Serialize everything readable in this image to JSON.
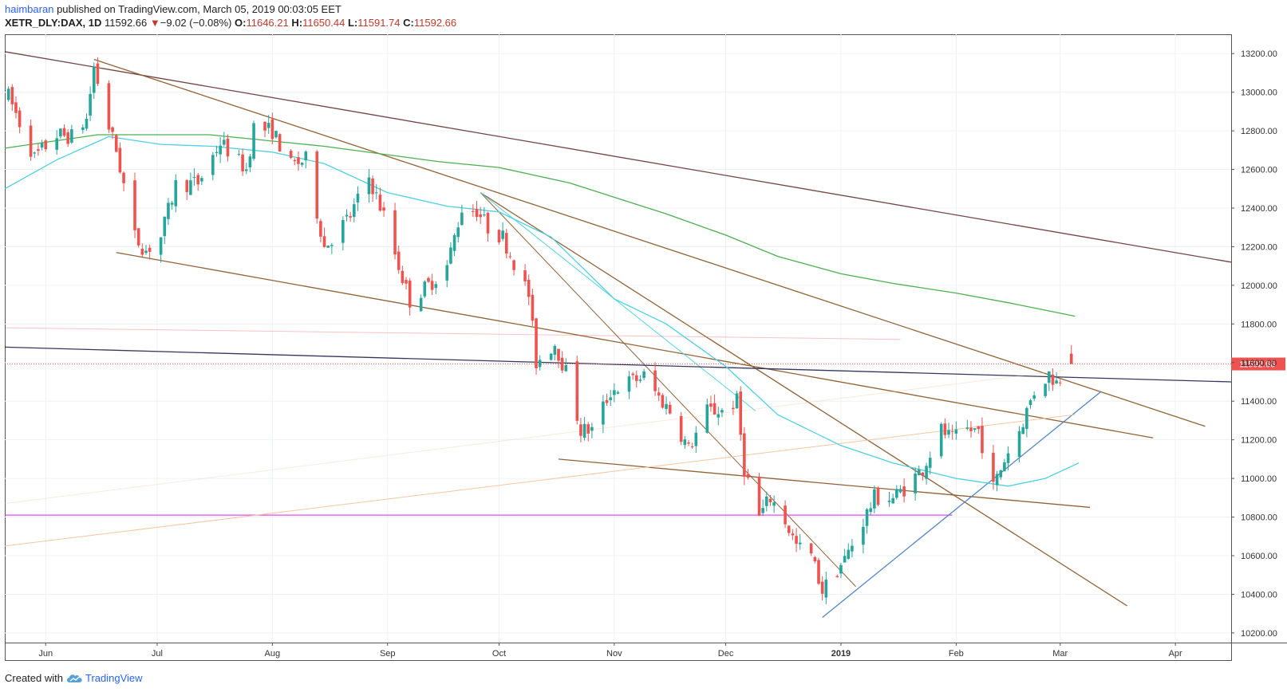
{
  "header": {
    "author": "haimbaran",
    "published_text": "published on TradingView.com, March 05, 2019 00:03:05 EET",
    "symbol": "XETR_DLY:DAX, 1D",
    "last": "11592.66",
    "change": "−9.02 (−0.08%)",
    "o_label": "O:",
    "o_value": "11646.21",
    "h_label": "H:",
    "h_value": "11650.44",
    "l_label": "L:",
    "l_value": "11591.74",
    "c_label": "C:",
    "c_value": "11592.66"
  },
  "footer": {
    "created_with": "Created with",
    "brand": "TradingView",
    "brand_icon": "tradingview-cloud-icon"
  },
  "colors": {
    "up": "#26a69a",
    "down": "#ef5350",
    "price_tag": "#ef5350",
    "ma_long": "#4caf50",
    "ma_short": "#4dd0e1",
    "trend_brown": "#8b5a2b",
    "trend_dark": "#6b3a3a",
    "support_magenta": "#e040fb",
    "horizontal_navy": "#2b2b55",
    "uptrend_blue": "#4a7fc1",
    "faint_orange": "#f4c49a",
    "grid": "#eef1f4"
  },
  "chart_data": {
    "type": "candlestick",
    "ylim": [
      10150,
      13300
    ],
    "y_ticks": [
      "13200.00",
      "13000.00",
      "12800.00",
      "12600.00",
      "12400.00",
      "12200.00",
      "12000.00",
      "11800.00",
      "11600.00",
      "11400.00",
      "11200.00",
      "11000.00",
      "10800.00",
      "10600.00",
      "10400.00",
      "10200.00"
    ],
    "x_ticks": [
      {
        "label": "Jun",
        "date": "2018-06-01"
      },
      {
        "label": "Jul",
        "date": "2018-07-01"
      },
      {
        "label": "Aug",
        "date": "2018-08-01"
      },
      {
        "label": "Sep",
        "date": "2018-09-01"
      },
      {
        "label": "Oct",
        "date": "2018-10-01"
      },
      {
        "label": "Nov",
        "date": "2018-11-01"
      },
      {
        "label": "Dec",
        "date": "2018-12-01"
      },
      {
        "label": "2019",
        "date": "2019-01-01"
      },
      {
        "label": "Feb",
        "date": "2019-02-01"
      },
      {
        "label": "Mar",
        "date": "2019-03-01"
      },
      {
        "label": "Apr",
        "date": "2019-04-01"
      }
    ],
    "x_range": [
      "2018-05-21",
      "2019-04-16"
    ],
    "last_price": "11592.66",
    "last_price_line_value": 11592.66,
    "ohlc_path": [
      [
        "2018-05-22",
        12980
      ],
      [
        "2018-05-29",
        12660
      ],
      [
        "2018-06-04",
        12780
      ],
      [
        "2018-06-08",
        12770
      ],
      [
        "2018-06-12",
        12860
      ],
      [
        "2018-06-14",
        13130
      ],
      [
        "2018-06-18",
        12820
      ],
      [
        "2018-06-20",
        12700
      ],
      [
        "2018-06-25",
        12250
      ],
      [
        "2018-06-28",
        12180
      ],
      [
        "2018-07-02",
        12250
      ],
      [
        "2018-07-06",
        12520
      ],
      [
        "2018-07-12",
        12530
      ],
      [
        "2018-07-18",
        12740
      ],
      [
        "2018-07-25",
        12600
      ],
      [
        "2018-07-27",
        12820
      ],
      [
        "2018-08-01",
        12800
      ],
      [
        "2018-08-06",
        12620
      ],
      [
        "2018-08-10",
        12650
      ],
      [
        "2018-08-15",
        12200
      ],
      [
        "2018-08-22",
        12360
      ],
      [
        "2018-08-27",
        12560
      ],
      [
        "2018-08-31",
        12360
      ],
      [
        "2018-09-04",
        12100
      ],
      [
        "2018-09-07",
        11920
      ],
      [
        "2018-09-12",
        12000
      ],
      [
        "2018-09-17",
        12100
      ],
      [
        "2018-09-21",
        12400
      ],
      [
        "2018-09-25",
        12390
      ],
      [
        "2018-09-28",
        12300
      ],
      [
        "2018-10-02",
        12250
      ],
      [
        "2018-10-05",
        12120
      ],
      [
        "2018-10-09",
        11950
      ],
      [
        "2018-10-11",
        11600
      ],
      [
        "2018-10-16",
        11700
      ],
      [
        "2018-10-19",
        11550
      ],
      [
        "2018-10-23",
        11250
      ],
      [
        "2018-10-26",
        11250
      ],
      [
        "2018-10-31",
        11450
      ],
      [
        "2018-11-05",
        11500
      ],
      [
        "2018-11-09",
        11530
      ],
      [
        "2018-11-13",
        11420
      ],
      [
        "2018-11-16",
        11350
      ],
      [
        "2018-11-21",
        11150
      ],
      [
        "2018-11-26",
        11350
      ],
      [
        "2018-11-30",
        11350
      ],
      [
        "2018-12-04",
        11400
      ],
      [
        "2018-12-06",
        11050
      ],
      [
        "2018-12-10",
        10800
      ],
      [
        "2018-12-13",
        10900
      ],
      [
        "2018-12-17",
        10780
      ],
      [
        "2018-12-20",
        10650
      ],
      [
        "2018-12-24",
        10600
      ],
      [
        "2018-12-27",
        10420
      ],
      [
        "2019-01-02",
        10580
      ],
      [
        "2019-01-07",
        10780
      ],
      [
        "2019-01-10",
        10900
      ],
      [
        "2019-01-15",
        10900
      ],
      [
        "2019-01-18",
        10950
      ],
      [
        "2019-01-23",
        11050
      ],
      [
        "2019-01-28",
        11250
      ],
      [
        "2019-01-31",
        11200
      ],
      [
        "2019-02-04",
        11250
      ],
      [
        "2019-02-07",
        11250
      ],
      [
        "2019-02-11",
        10950
      ],
      [
        "2019-02-14",
        11100
      ],
      [
        "2019-02-18",
        11250
      ],
      [
        "2019-02-22",
        11450
      ],
      [
        "2019-02-26",
        11540
      ],
      [
        "2019-02-28",
        11500
      ],
      [
        "2019-03-04",
        11592.66
      ]
    ],
    "moving_averages": [
      {
        "key": "ma_short",
        "points": [
          [
            "2018-05-21",
            12500
          ],
          [
            "2018-06-04",
            12650
          ],
          [
            "2018-06-18",
            12770
          ],
          [
            "2018-07-02",
            12730
          ],
          [
            "2018-07-16",
            12720
          ],
          [
            "2018-08-01",
            12690
          ],
          [
            "2018-08-15",
            12630
          ],
          [
            "2018-09-01",
            12480
          ],
          [
            "2018-09-17",
            12410
          ],
          [
            "2018-10-01",
            12380
          ],
          [
            "2018-10-15",
            12250
          ],
          [
            "2018-11-01",
            11930
          ],
          [
            "2018-11-15",
            11800
          ],
          [
            "2018-12-01",
            11580
          ],
          [
            "2018-12-15",
            11330
          ],
          [
            "2019-01-01",
            11170
          ],
          [
            "2019-01-15",
            11080
          ],
          [
            "2019-02-01",
            11000
          ],
          [
            "2019-02-15",
            10960
          ],
          [
            "2019-02-25",
            11000
          ],
          [
            "2019-03-06",
            11080
          ]
        ]
      },
      {
        "key": "ma_long",
        "points": [
          [
            "2018-05-21",
            12710
          ],
          [
            "2018-06-15",
            12780
          ],
          [
            "2018-07-15",
            12780
          ],
          [
            "2018-08-15",
            12720
          ],
          [
            "2018-09-15",
            12640
          ],
          [
            "2018-10-01",
            12610
          ],
          [
            "2018-10-20",
            12530
          ],
          [
            "2018-11-15",
            12370
          ],
          [
            "2018-12-01",
            12260
          ],
          [
            "2018-12-15",
            12150
          ],
          [
            "2019-01-01",
            12060
          ],
          [
            "2019-01-15",
            12010
          ],
          [
            "2019-02-01",
            11960
          ],
          [
            "2019-02-15",
            11910
          ],
          [
            "2019-03-05",
            11840
          ]
        ]
      }
    ],
    "drawings": [
      {
        "color": "trend_dark",
        "from": [
          "2018-05-21",
          13210
        ],
        "to": [
          "2019-04-16",
          12120
        ]
      },
      {
        "color": "trend_brown",
        "from": [
          "2018-06-14",
          13170
        ],
        "to": [
          "2019-04-09",
          11270
        ]
      },
      {
        "color": "trend_brown",
        "from": [
          "2018-06-20",
          12170
        ],
        "to": [
          "2019-03-26",
          11210
        ]
      },
      {
        "color": "trend_brown",
        "from": [
          "2018-09-26",
          12480
        ],
        "to": [
          "2019-03-19",
          10340
        ]
      },
      {
        "color": "trend_brown",
        "from": [
          "2018-10-17",
          11100
        ],
        "to": [
          "2019-03-09",
          10850
        ]
      },
      {
        "color": "trend_brown",
        "from": [
          "2018-09-26",
          12480
        ],
        "to": [
          "2019-01-05",
          10440
        ],
        "thin": true
      },
      {
        "color": "ma_short",
        "from": [
          "2018-09-26",
          12480
        ],
        "to": [
          "2018-12-09",
          11350
        ],
        "thin": true
      },
      {
        "color": "horizontal_navy",
        "from": [
          "2018-05-21",
          11680
        ],
        "to": [
          "2019-04-16",
          11500
        ]
      },
      {
        "color": "support_magenta",
        "from": [
          "2018-05-21",
          10810
        ],
        "to": [
          "2019-01-31",
          10810
        ]
      },
      {
        "color": "uptrend_blue",
        "from": [
          "2018-12-27",
          10280
        ],
        "to": [
          "2019-03-12",
          11450
        ]
      },
      {
        "color": "faint_orange",
        "from": [
          "2018-05-21",
          10650
        ],
        "to": [
          "2019-03-05",
          11330
        ],
        "thin": true
      },
      {
        "color": "faint_orange",
        "from": [
          "2018-05-21",
          10870
        ],
        "to": [
          "2019-03-02",
          11560
        ],
        "thin": true,
        "faint": true
      },
      {
        "color": "down",
        "from": [
          "2018-05-21",
          11780
        ],
        "to": [
          "2019-01-17",
          11720
        ],
        "thin": true,
        "faint": true
      }
    ]
  }
}
